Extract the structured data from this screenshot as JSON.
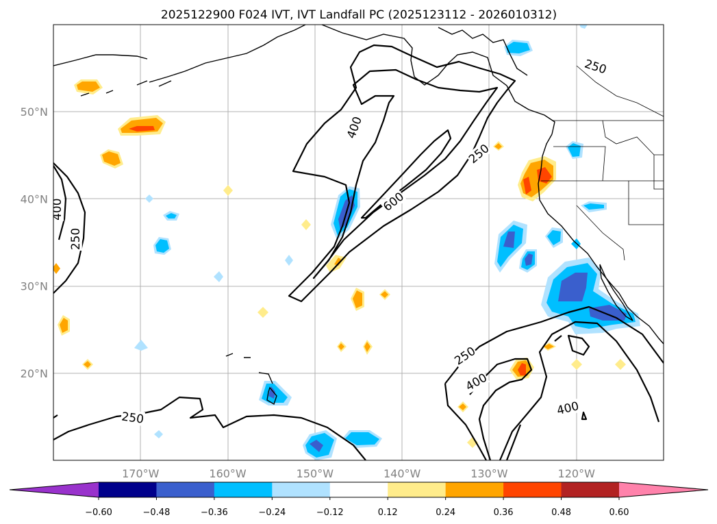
{
  "figure": {
    "title": "2025122900 F024 IVT, IVT Landfall PC (2025123112 - 2026010312)",
    "map_extent": {
      "lon_min": -180,
      "lon_max": -110,
      "lat_min": 10,
      "lat_max": 60
    }
  },
  "axes": {
    "x_ticks": [
      {
        "lon": -170,
        "label": "170°W"
      },
      {
        "lon": -160,
        "label": "160°W"
      },
      {
        "lon": -150,
        "label": "150°W"
      },
      {
        "lon": -140,
        "label": "140°W"
      },
      {
        "lon": -130,
        "label": "130°W"
      },
      {
        "lon": -120,
        "label": "120°W"
      }
    ],
    "y_ticks": [
      {
        "lat": 50,
        "label": "50°N"
      },
      {
        "lat": 40,
        "label": "40°N"
      },
      {
        "lat": 30,
        "label": "30°N"
      },
      {
        "lat": 20,
        "label": "20°N"
      }
    ]
  },
  "contour_labels": [
    {
      "text": "400",
      "lon": -145.5,
      "lat": 48.2,
      "rot": -70
    },
    {
      "text": "600",
      "lon": -141.0,
      "lat": 39.7,
      "rot": -38
    },
    {
      "text": "250",
      "lon": -131.2,
      "lat": 45.2,
      "rot": -40
    },
    {
      "text": "250",
      "lon": -117.8,
      "lat": 55.2,
      "rot": 18
    },
    {
      "text": "400",
      "lon": -179.6,
      "lat": 38.8,
      "rot": -90
    },
    {
      "text": "250",
      "lon": -177.5,
      "lat": 35.4,
      "rot": -90
    },
    {
      "text": "250",
      "lon": -170.9,
      "lat": 14.9,
      "rot": 8
    },
    {
      "text": "250",
      "lon": -132.8,
      "lat": 22.0,
      "rot": -34
    },
    {
      "text": "400",
      "lon": -131.5,
      "lat": 19.0,
      "rot": -30
    },
    {
      "text": "400",
      "lon": -121.0,
      "lat": 16.0,
      "rot": -14
    }
  ],
  "colorbar": {
    "tick_labels": [
      "−0.60",
      "−0.48",
      "−0.36",
      "−0.24",
      "−0.12",
      "0.12",
      "0.24",
      "0.36",
      "0.48",
      "0.60"
    ],
    "colors": [
      "#9932cc",
      "#00008b",
      "#3a5fcd",
      "#00bfff",
      "#b0e2ff",
      "#ffffff",
      "#ffec8b",
      "#ffa500",
      "#ff4500",
      "#b22222",
      "#ff82ab"
    ]
  },
  "chart_data": {
    "type": "map",
    "title": "2025122900 F024 IVT, IVT Landfall PC (2025123112 - 2026010312)",
    "variable_contours": "IVT",
    "contour_levels": [
      250,
      400,
      600
    ],
    "variable_shaded": "IVT Landfall PC",
    "shading_bounds": [
      -0.6,
      -0.48,
      -0.36,
      -0.24,
      -0.12,
      0.12,
      0.24,
      0.36,
      0.48,
      0.6
    ],
    "lon_range": [
      -180,
      -110
    ],
    "lat_range": [
      10,
      60
    ],
    "shaded_features": [
      {
        "lon": -124.6,
        "lat": 42.0,
        "value": 0.45,
        "note": "positive max off N California"
      },
      {
        "lon": -119.5,
        "lat": 30.0,
        "value": -0.45,
        "note": "negative max off Baja California"
      },
      {
        "lon": -145.5,
        "lat": 38.5,
        "value": -0.4,
        "note": "negative max in AR core"
      },
      {
        "lon": -128.5,
        "lat": 34.5,
        "value": -0.4
      },
      {
        "lon": -168.0,
        "lat": 47.8,
        "value": 0.4
      },
      {
        "lon": -146.0,
        "lat": 12.0,
        "value": -0.4
      },
      {
        "lon": -126.5,
        "lat": 20.5,
        "value": 0.42
      }
    ]
  }
}
